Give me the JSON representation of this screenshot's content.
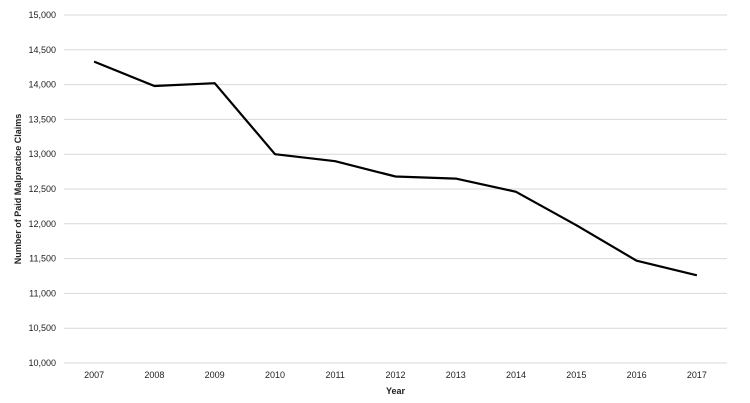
{
  "chart_data": {
    "type": "line",
    "title": "",
    "xlabel": "Year",
    "ylabel": "Number of Paid Malpractice Claims",
    "categories": [
      "2007",
      "2008",
      "2009",
      "2010",
      "2011",
      "2012",
      "2013",
      "2014",
      "2015",
      "2016",
      "2017"
    ],
    "series": [
      {
        "values": [
          14330,
          13980,
          14020,
          13000,
          12900,
          12680,
          12650,
          12460,
          11980,
          11470,
          11260
        ]
      }
    ],
    "ylim": [
      10000,
      15000
    ],
    "yticks": [
      "10,000",
      "10,500",
      "11,000",
      "11,500",
      "12,000",
      "12,500",
      "13,000",
      "13,500",
      "14,000",
      "14,500",
      "15,000"
    ],
    "grid": true,
    "colors": {
      "line": "#000000",
      "grid": "#d9d9d9"
    }
  }
}
